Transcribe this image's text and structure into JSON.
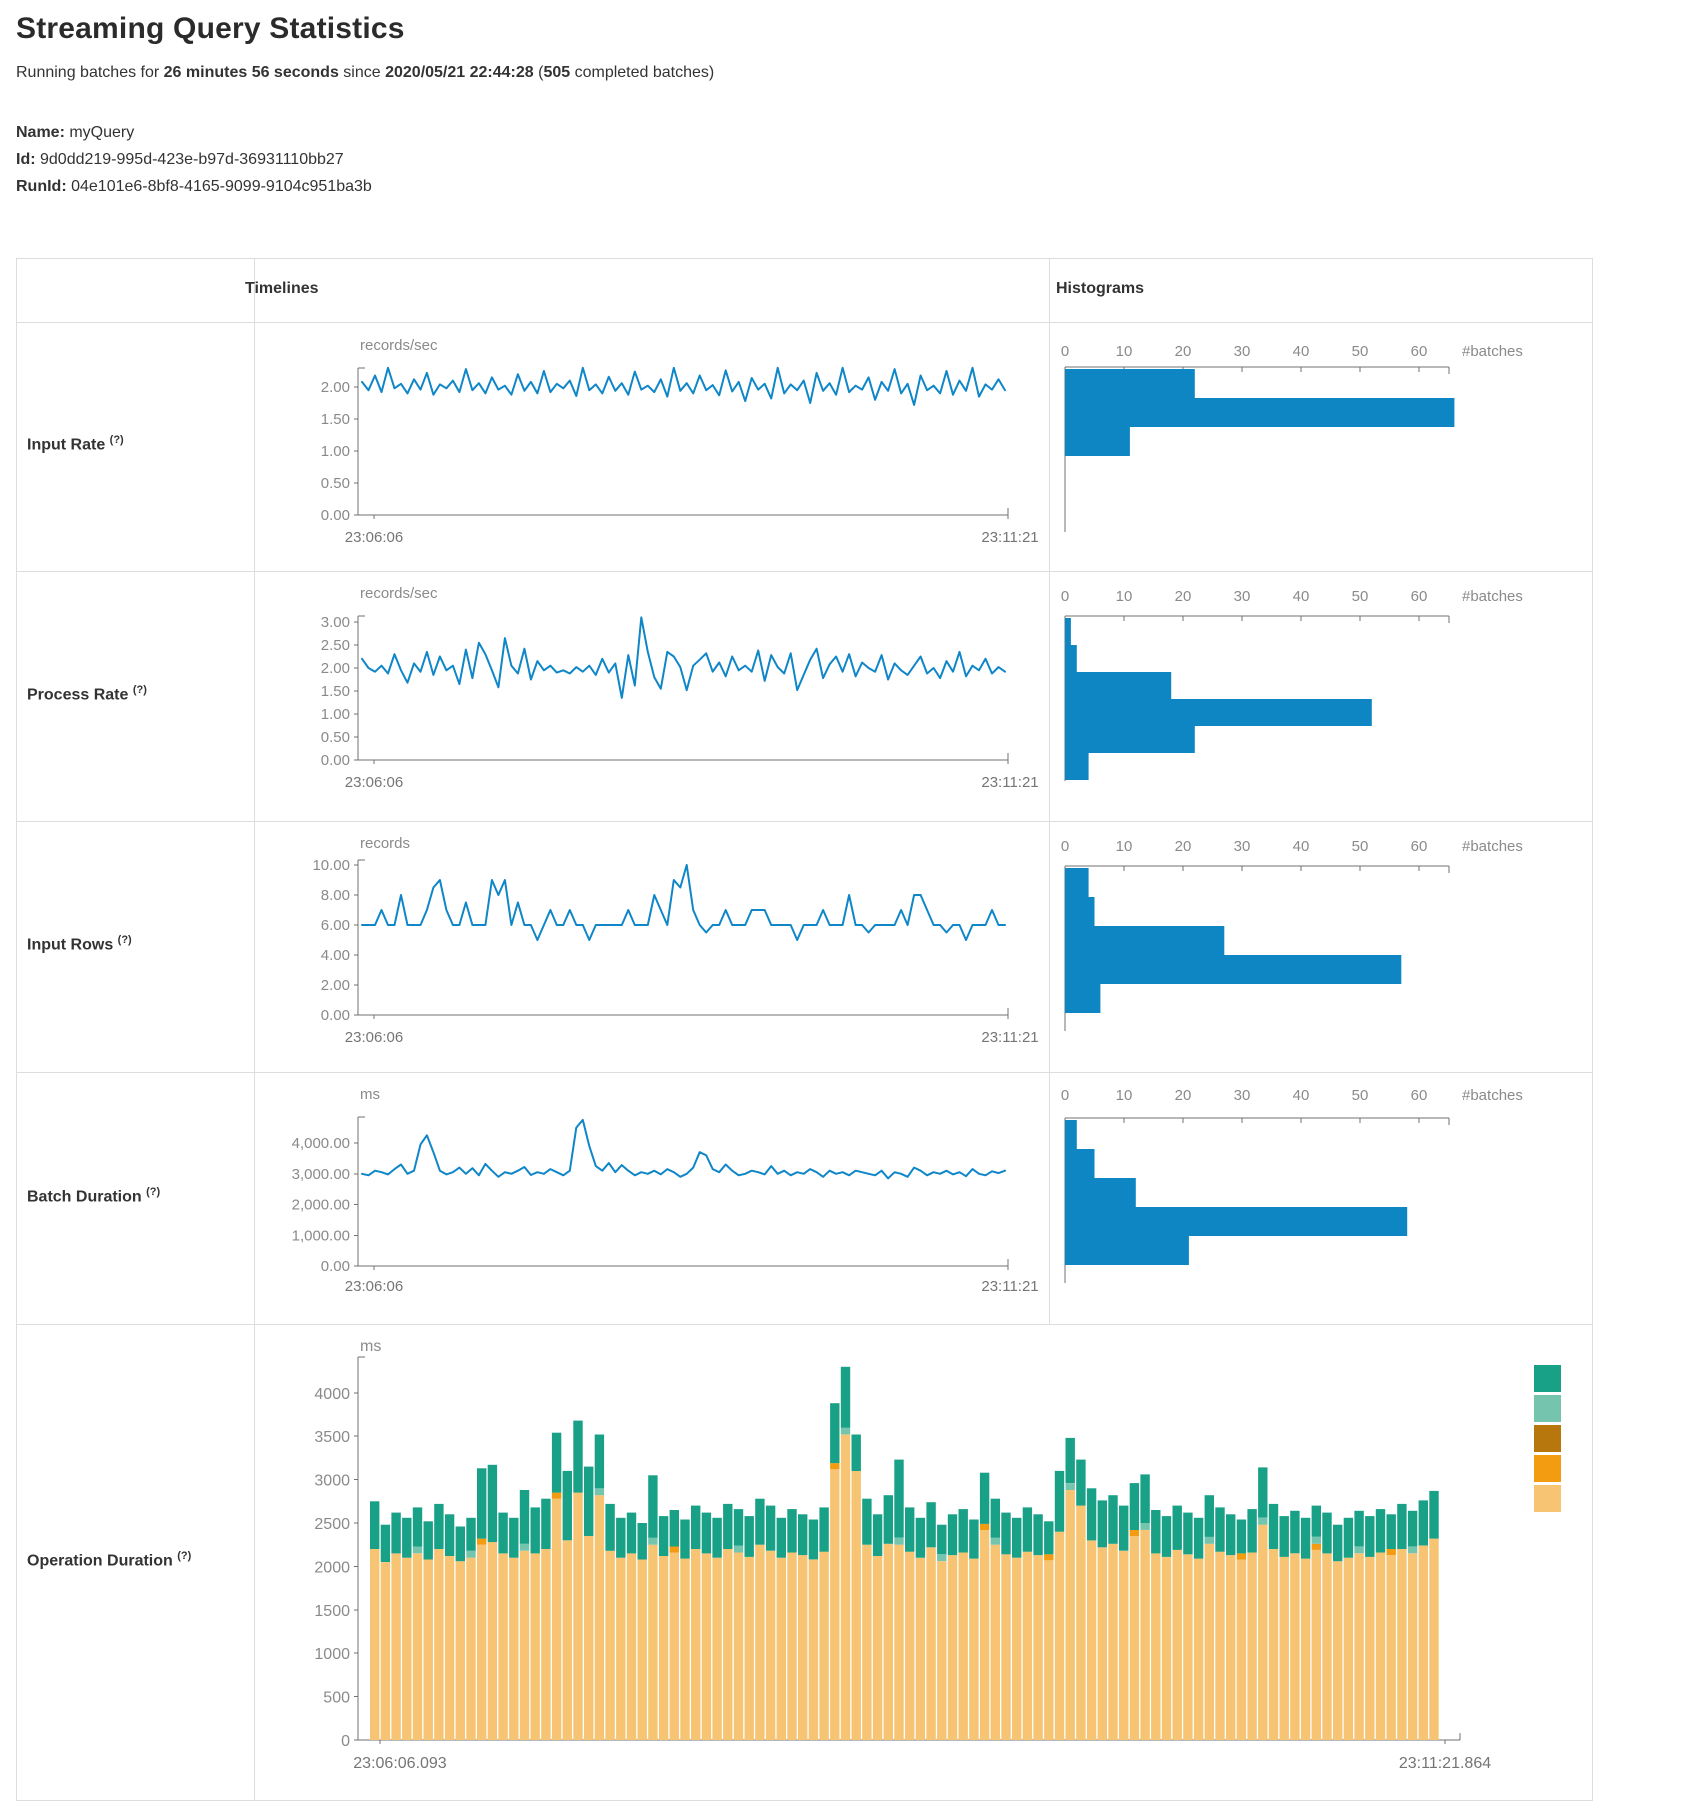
{
  "page": {
    "title": "Streaming Query Statistics",
    "subtitle": {
      "prefix": "Running batches for ",
      "duration": "26 minutes 56 seconds",
      "middle": " since ",
      "start_time": "2020/05/21 22:44:28",
      "open": " (",
      "batch_count": "505",
      "suffix": " completed batches)"
    },
    "name_label": "Name:",
    "name_value": " myQuery",
    "id_label": "Id:",
    "id_value": " 9d0dd219-995d-423e-b97d-36931110bb27",
    "runid_label": "RunId:",
    "runid_value": " 04e101e6-8bf8-4165-9099-9104c951ba3b"
  },
  "table": {
    "headers": {
      "timelines": "Timelines",
      "histograms": "Histograms"
    },
    "rows": [
      {
        "label": "Input Rate",
        "help": "(?)"
      },
      {
        "label": "Process Rate",
        "help": "(?)"
      },
      {
        "label": "Input Rows",
        "help": "(?)"
      },
      {
        "label": "Batch Duration",
        "help": "(?)"
      },
      {
        "label": "Operation Duration",
        "help": "(?)"
      }
    ]
  },
  "colors": {
    "line_blue": "#0f86c8",
    "hist_blue": "#0e86c4",
    "axis_gray": "#707070",
    "tick_text_gray": "#8a8a8a",
    "time_text_gray": "#757575",
    "border_gray": "#dddddd",
    "teal": "#18a186",
    "light_teal": "#74c4ae",
    "dark_gold": "#b8770d",
    "orange": "#f39c12",
    "light_orange": "#f6c473"
  },
  "chart_data": [
    {
      "row": "Input Rate",
      "type": "line",
      "unit": "records/sec",
      "x_start_label": "23:06:06",
      "x_end_label": "23:11:21",
      "y_ticks": {
        "labels": [
          "2.00",
          "1.50",
          "1.00",
          "0.50",
          "0.00"
        ],
        "values": [
          2,
          1.5,
          1,
          0.5,
          0
        ]
      },
      "values": [
        2.08,
        1.95,
        2.18,
        1.92,
        2.3,
        1.98,
        2.05,
        1.9,
        2.12,
        1.96,
        2.22,
        1.88,
        2.04,
        1.98,
        2.1,
        1.92,
        2.28,
        1.95,
        2.06,
        1.9,
        2.15,
        1.96,
        2.02,
        1.88,
        2.2,
        1.94,
        2.08,
        1.9,
        2.25,
        1.92,
        2.05,
        1.98,
        2.1,
        1.86,
        2.3,
        1.95,
        2.04,
        1.9,
        2.16,
        1.94,
        2.06,
        1.88,
        2.24,
        1.96,
        2.02,
        1.92,
        2.12,
        1.85,
        2.3,
        1.94,
        2.06,
        1.9,
        2.18,
        1.95,
        2.03,
        1.87,
        2.26,
        1.93,
        2.08,
        1.78,
        2.14,
        1.96,
        2.05,
        1.82,
        2.3,
        1.9,
        2.04,
        1.95,
        2.1,
        1.75,
        2.22,
        1.94,
        2.06,
        1.88,
        2.3,
        1.92,
        2.02,
        1.96,
        2.15,
        1.8,
        2.08,
        1.94,
        2.28,
        1.9,
        2.05,
        1.72,
        2.18,
        1.95,
        2.02,
        1.9,
        2.25,
        1.88,
        2.1,
        1.94,
        2.3,
        1.85,
        2.04,
        1.96,
        2.12,
        1.95
      ],
      "histogram": {
        "type": "bar",
        "axis_ticks": [
          "0",
          "10",
          "20",
          "30",
          "40",
          "50",
          "60"
        ],
        "axis_label": "#batches",
        "bins": [
          22,
          66,
          11
        ]
      }
    },
    {
      "row": "Process Rate",
      "type": "line",
      "unit": "records/sec",
      "x_start_label": "23:06:06",
      "x_end_label": "23:11:21",
      "y_ticks": {
        "labels": [
          "3.00",
          "2.50",
          "2.00",
          "1.50",
          "1.00",
          "0.50",
          "0.00"
        ],
        "values": [
          3,
          2.5,
          2,
          1.5,
          1,
          0.5,
          0
        ]
      },
      "values": [
        2.2,
        2.0,
        1.92,
        2.05,
        1.88,
        2.3,
        1.95,
        1.68,
        2.1,
        1.92,
        2.35,
        1.85,
        2.25,
        1.95,
        2.05,
        1.65,
        2.4,
        1.78,
        2.55,
        2.3,
        1.95,
        1.58,
        2.65,
        2.05,
        1.88,
        2.42,
        1.75,
        2.15,
        1.95,
        2.05,
        1.9,
        1.95,
        1.88,
        2.02,
        1.92,
        2.05,
        1.85,
        2.2,
        1.9,
        2.1,
        1.35,
        2.28,
        1.62,
        3.1,
        2.35,
        1.8,
        1.55,
        2.35,
        2.25,
        2.02,
        1.52,
        2.05,
        2.18,
        2.32,
        1.92,
        2.12,
        1.82,
        2.25,
        1.95,
        2.05,
        1.92,
        2.38,
        1.72,
        2.28,
        2.02,
        1.88,
        2.32,
        1.52,
        1.85,
        2.18,
        2.42,
        1.78,
        2.08,
        2.25,
        1.92,
        2.3,
        1.82,
        2.12,
        2.0,
        1.92,
        2.28,
        1.75,
        2.1,
        1.95,
        1.85,
        2.05,
        2.25,
        1.88,
        2.0,
        1.78,
        2.15,
        1.92,
        2.35,
        1.82,
        2.05,
        1.95,
        2.2,
        1.88,
        2.02,
        1.92
      ],
      "histogram": {
        "type": "bar",
        "axis_ticks": [
          "0",
          "10",
          "20",
          "30",
          "40",
          "50",
          "60"
        ],
        "axis_label": "#batches",
        "bins": [
          1,
          2,
          18,
          52,
          22,
          4
        ]
      }
    },
    {
      "row": "Input Rows",
      "type": "line",
      "unit": "records",
      "x_start_label": "23:06:06",
      "x_end_label": "23:11:21",
      "y_ticks": {
        "labels": [
          "10.00",
          "8.00",
          "6.00",
          "4.00",
          "2.00",
          "0.00"
        ],
        "values": [
          10,
          8,
          6,
          4,
          2,
          0
        ]
      },
      "values": [
        6,
        6,
        6,
        7,
        6,
        6,
        8,
        6,
        6,
        6,
        7,
        8.5,
        9,
        7,
        6,
        6,
        7.5,
        6,
        6,
        6,
        9,
        8,
        9,
        6,
        7.5,
        6,
        6,
        5,
        6,
        7,
        6,
        6,
        7,
        6,
        6,
        5,
        6,
        6,
        6,
        6,
        6,
        7,
        6,
        6,
        6,
        8,
        7,
        6,
        9,
        8.5,
        10,
        7,
        6,
        5.5,
        6,
        6,
        7,
        6,
        6,
        6,
        7,
        7,
        7,
        6,
        6,
        6,
        6,
        5,
        6,
        6,
        6,
        7,
        6,
        6,
        6,
        8,
        6,
        6,
        5.5,
        6,
        6,
        6,
        6,
        7,
        6,
        8,
        8,
        7,
        6,
        6,
        5.5,
        6,
        6,
        5,
        6,
        6,
        6,
        7,
        6,
        6
      ],
      "histogram": {
        "type": "bar",
        "axis_ticks": [
          "0",
          "10",
          "20",
          "30",
          "40",
          "50",
          "60"
        ],
        "axis_label": "#batches",
        "bins": [
          4,
          5,
          27,
          57,
          6
        ]
      }
    },
    {
      "row": "Batch Duration",
      "type": "line",
      "unit": "ms",
      "x_start_label": "23:06:06",
      "x_end_label": "23:11:21",
      "y_ticks": {
        "labels": [
          "4,000.00",
          "3,000.00",
          "2,000.00",
          "1,000.00",
          "0.00"
        ],
        "values": [
          4000,
          3000,
          2000,
          1000,
          0
        ]
      },
      "values": [
        3000,
        2950,
        3100,
        3050,
        2980,
        3150,
        3300,
        3000,
        3100,
        3950,
        4250,
        3700,
        3100,
        2980,
        3050,
        3200,
        3000,
        3180,
        2950,
        3320,
        3100,
        2900,
        3050,
        3000,
        3100,
        3220,
        2960,
        3050,
        3000,
        3150,
        3050,
        2950,
        3100,
        4500,
        4750,
        3900,
        3250,
        3100,
        3350,
        3050,
        3280,
        3100,
        2950,
        3050,
        3000,
        3100,
        2980,
        3150,
        3050,
        2900,
        3000,
        3200,
        3700,
        3600,
        3150,
        3050,
        3300,
        3100,
        2950,
        3000,
        3100,
        3050,
        2980,
        3250,
        3000,
        3100,
        2950,
        3050,
        3000,
        3150,
        3050,
        2900,
        3100,
        3000,
        3050,
        2950,
        3100,
        3050,
        3000,
        2950,
        3100,
        2850,
        3050,
        3000,
        2900,
        3200,
        3100,
        2950,
        3050,
        3000,
        3100,
        2980,
        3050,
        2920,
        3150,
        3000,
        2950,
        3080,
        3020,
        3100
      ],
      "histogram": {
        "type": "bar",
        "axis_ticks": [
          "0",
          "10",
          "20",
          "30",
          "40",
          "50",
          "60"
        ],
        "axis_label": "#batches",
        "bins": [
          2,
          5,
          12,
          58,
          21
        ]
      }
    },
    {
      "row": "Operation Duration",
      "type": "stacked_bar",
      "unit": "ms",
      "x_start_label": "23:06:06.093",
      "x_end_label": "23:11:21.864",
      "y_ticks": {
        "labels": [
          "4000",
          "3500",
          "3000",
          "2500",
          "2000",
          "1500",
          "1000",
          "500",
          "0"
        ],
        "values": [
          4000,
          3500,
          3000,
          2500,
          2000,
          1500,
          1000,
          500,
          0
        ]
      },
      "totals": [
        2750,
        2480,
        2620,
        2560,
        2680,
        2520,
        2720,
        2600,
        2460,
        2560,
        3130,
        3170,
        2620,
        2560,
        2880,
        2680,
        2780,
        3540,
        3100,
        3680,
        3150,
        3520,
        2720,
        2560,
        2620,
        2500,
        3050,
        2580,
        2650,
        2540,
        2700,
        2620,
        2560,
        2720,
        2660,
        2580,
        2780,
        2700,
        2560,
        2660,
        2600,
        2540,
        2680,
        3880,
        4300,
        3520,
        2780,
        2600,
        2820,
        3230,
        2680,
        2560,
        2740,
        2480,
        2600,
        2660,
        2540,
        3080,
        2780,
        2620,
        2560,
        2680,
        2600,
        2520,
        3100,
        3480,
        3230,
        2900,
        2760,
        2820,
        2700,
        2960,
        3060,
        2650,
        2580,
        2700,
        2620,
        2560,
        2820,
        2680,
        2600,
        2540,
        2660,
        3140,
        2720,
        2580,
        2640,
        2560,
        2700,
        2620,
        2480,
        2560,
        2640,
        2580,
        2660,
        2600,
        2720,
        2640,
        2760,
        2870
      ],
      "base": [
        2200,
        2050,
        2150,
        2100,
        2150,
        2080,
        2200,
        2120,
        2060,
        2100,
        2250,
        2280,
        2150,
        2100,
        2180,
        2150,
        2200,
        2780,
        2300,
        2850,
        2350,
        2820,
        2180,
        2100,
        2150,
        2080,
        2250,
        2120,
        2160,
        2090,
        2200,
        2150,
        2100,
        2200,
        2160,
        2110,
        2250,
        2180,
        2100,
        2160,
        2130,
        2080,
        2170,
        3120,
        3520,
        3100,
        2250,
        2120,
        2260,
        2250,
        2170,
        2100,
        2220,
        2060,
        2130,
        2160,
        2090,
        2420,
        2250,
        2140,
        2100,
        2170,
        2130,
        2070,
        2400,
        2880,
        2700,
        2300,
        2220,
        2260,
        2180,
        2350,
        2420,
        2150,
        2110,
        2190,
        2140,
        2090,
        2260,
        2170,
        2130,
        2080,
        2160,
        2480,
        2200,
        2110,
        2150,
        2090,
        2190,
        2150,
        2060,
        2100,
        2150,
        2110,
        2160,
        2130,
        2200,
        2150,
        2240,
        2320
      ],
      "sliver_light_teal_indices": [
        4,
        9,
        14,
        21,
        26,
        34,
        44,
        49,
        53,
        58,
        65,
        72,
        78,
        83,
        88,
        92,
        97
      ],
      "sliver_light_teal_value": 80,
      "sliver_orange_indices": [
        10,
        17,
        28,
        43,
        57,
        63,
        71,
        81,
        88,
        95
      ],
      "sliver_orange_value": 70,
      "legend_colors": [
        "#18a186",
        "#74c4ae",
        "#b8770d",
        "#f39c12",
        "#f6c473"
      ]
    }
  ]
}
